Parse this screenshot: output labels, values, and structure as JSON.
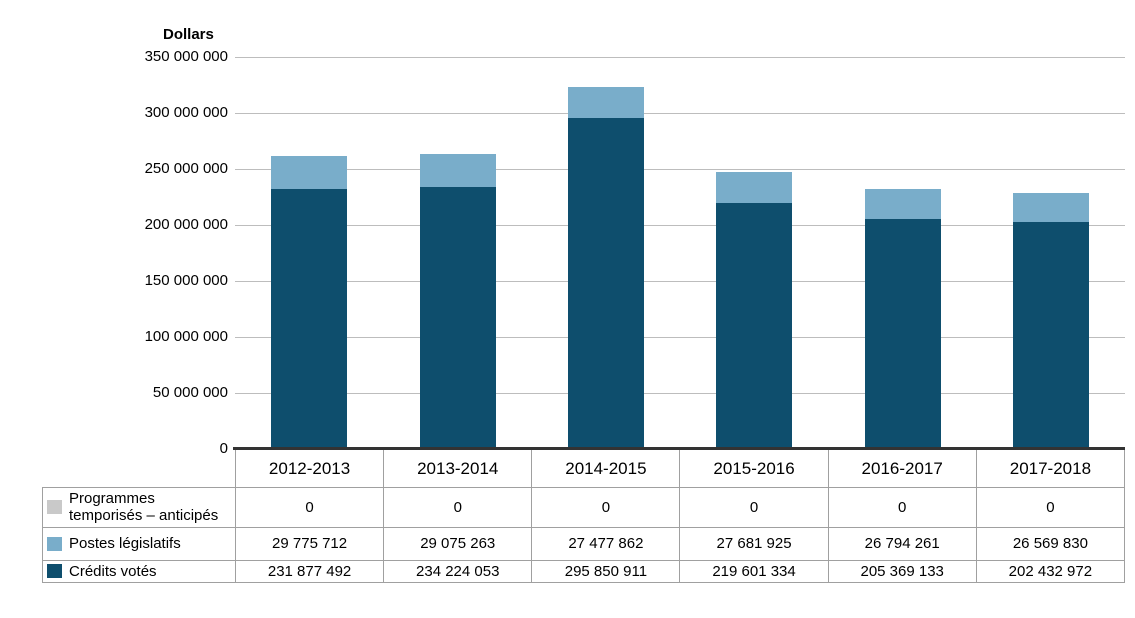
{
  "chart": {
    "y_axis_title": "Dollars"
  },
  "chart_data": {
    "type": "bar",
    "stacked": true,
    "title": "",
    "ylabel": "Dollars",
    "xlabel": "",
    "ylim": [
      0,
      350000000
    ],
    "ytick_step": 50000000,
    "y_tick_labels": [
      "350 000 000",
      "300 000 000",
      "250 000 000",
      "200 000 000",
      "150 000 000",
      "100 000 000",
      "50 000 000",
      "0"
    ],
    "grid": true,
    "legend_position": "table-rows-left",
    "categories": [
      "2012-2013",
      "2013-2014",
      "2014-2015",
      "2015-2016",
      "2016-2017",
      "2017-2018"
    ],
    "series": [
      {
        "name": "Programmes temporisés – anticipés",
        "label": "Programmes\ntemporisés – anticipés",
        "color": "#c9c9c9",
        "values": [
          0,
          0,
          0,
          0,
          0,
          0
        ],
        "display": [
          "0",
          "0",
          "0",
          "0",
          "0",
          "0"
        ]
      },
      {
        "name": "Postes législatifs",
        "label": "Postes législatifs",
        "color": "#79adca",
        "values": [
          29775712,
          29075263,
          27477862,
          27681925,
          26794261,
          26569830
        ],
        "display": [
          "29 775 712",
          "29 075 263",
          "27 477 862",
          "27 681 925",
          "26 794 261",
          "26 569 830"
        ]
      },
      {
        "name": "Crédits votés",
        "label": "Crédits votés",
        "color": "#0e4e6d",
        "values": [
          231877492,
          234224053,
          295850911,
          219601334,
          205369133,
          202432972
        ],
        "display": [
          "231 877 492",
          "234 224 053",
          "295 850 911",
          "219 601 334",
          "205 369 133",
          "202 432 972"
        ]
      }
    ]
  }
}
